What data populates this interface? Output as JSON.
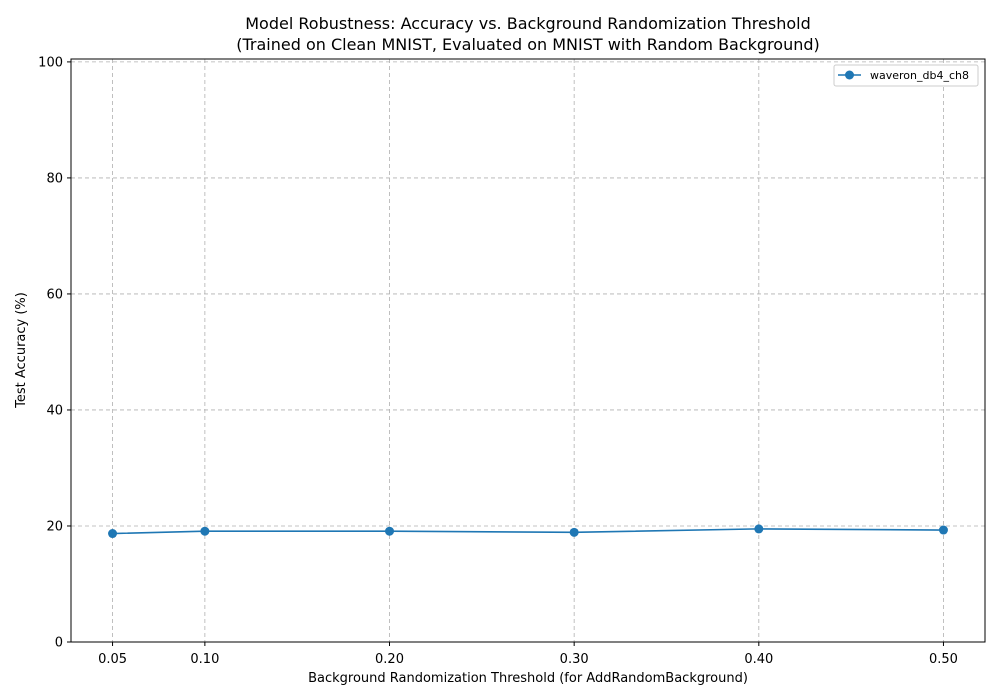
{
  "chart_data": {
    "type": "line",
    "title": "Model Robustness: Accuracy vs. Background Randomization Threshold",
    "subtitle": "(Trained on Clean MNIST, Evaluated on MNIST with Random Background)",
    "xlabel": "Background Randomization Threshold (for AddRandomBackground)",
    "ylabel": "Test Accuracy (%)",
    "x": [
      0.05,
      0.1,
      0.2,
      0.3,
      0.4,
      0.5
    ],
    "x_tick_labels": [
      "0.05",
      "0.10",
      "0.20",
      "0.30",
      "0.40",
      "0.50"
    ],
    "y_ticks": [
      0,
      20,
      40,
      60,
      80,
      100
    ],
    "y_tick_labels": [
      "0",
      "20",
      "40",
      "60",
      "80",
      "100"
    ],
    "xlim": [
      0.0275,
      0.5225
    ],
    "ylim": [
      0,
      100.5
    ],
    "grid": true,
    "legend_position": "top-right",
    "series": [
      {
        "name": "waveron_db4_ch8",
        "color": "#1f77b4",
        "marker": "circle",
        "values": [
          18.7,
          19.1,
          19.1,
          18.9,
          19.5,
          19.3
        ]
      }
    ]
  }
}
